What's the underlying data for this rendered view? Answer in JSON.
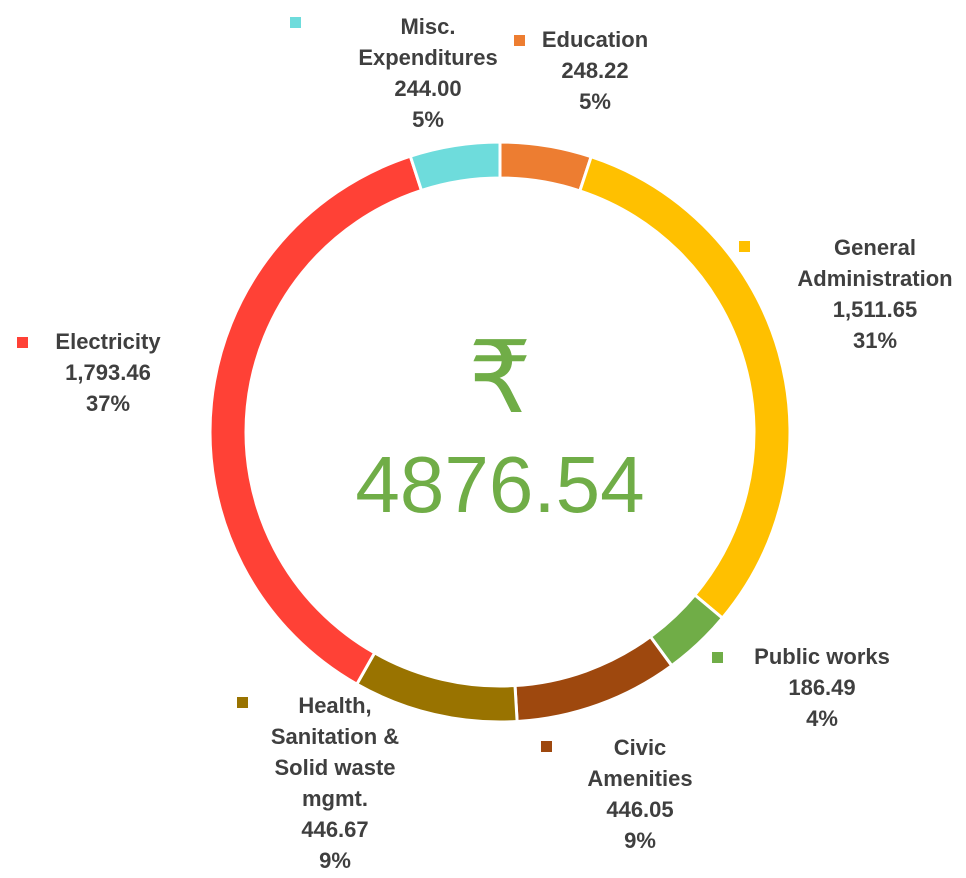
{
  "chart_data": {
    "type": "donut",
    "categories": [
      "Education",
      "General Administration",
      "Public works",
      "Civic Amenities",
      "Health, Sanitation & Solid waste mgmt.",
      "Electricity",
      "Misc. Expenditures"
    ],
    "values": [
      248.22,
      1511.65,
      186.49,
      446.05,
      446.67,
      1793.46,
      244.0
    ],
    "value_labels": [
      "248.22",
      "1,511.65",
      "186.49",
      "446.05",
      "446.67",
      "1,793.46",
      "244.00"
    ],
    "percent_labels": [
      "5%",
      "31%",
      "4%",
      "9%",
      "9%",
      "37%",
      "5%"
    ],
    "colors": [
      "#ED7D31",
      "#FFC000",
      "#70AD47",
      "#9E480E",
      "#997300",
      "#FF4136",
      "#6EDCDC"
    ],
    "center_symbol": "₹",
    "center_label": "4876.54"
  }
}
